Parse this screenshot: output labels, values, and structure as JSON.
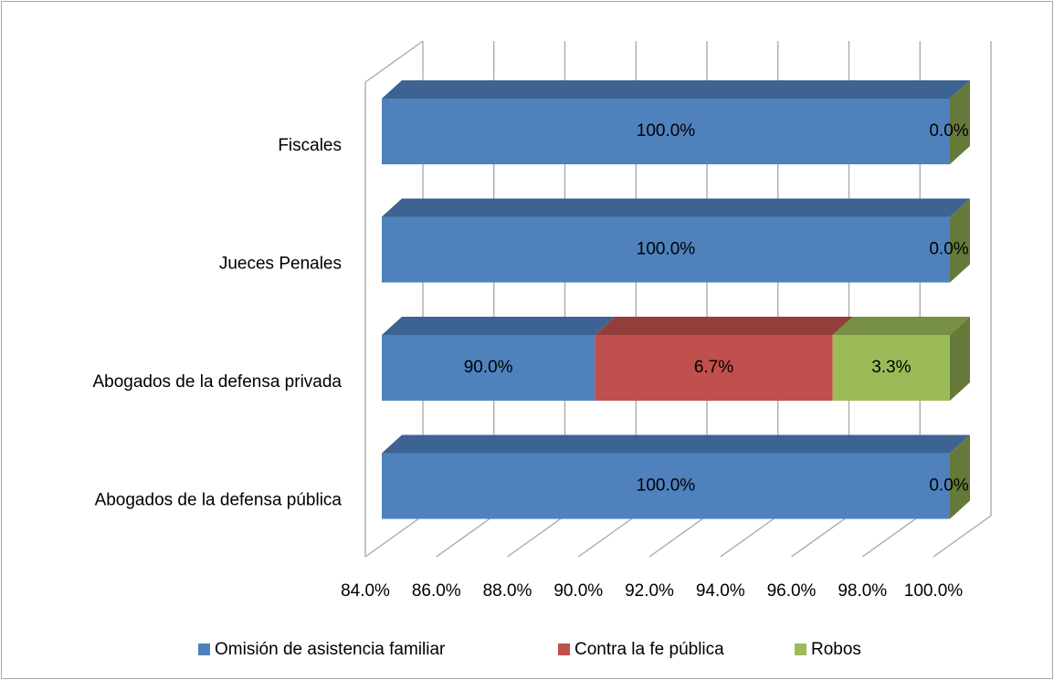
{
  "chart_data": {
    "type": "bar3d_stacked_horizontal",
    "categories": [
      "Fiscales",
      "Jueces Penales",
      "Abogados de la defensa privada",
      "Abogados de la defensa pública"
    ],
    "series": [
      {
        "name": "Omisión de asistencia familiar",
        "color": "#4f81bd",
        "values": [
          100,
          100,
          90,
          100
        ],
        "value_labels": [
          "100.0%",
          "100.0%",
          "90.0%",
          "100.0%"
        ]
      },
      {
        "name": "Contra la fe pública",
        "color": "#c0504d",
        "values": [
          0,
          0,
          6.7,
          0
        ],
        "value_labels": [
          null,
          null,
          "6.7%",
          null
        ]
      },
      {
        "name": "Robos",
        "color": "#9bbb59",
        "values": [
          0,
          0,
          3.3,
          0
        ],
        "value_labels": [
          "0.0%",
          "0.0%",
          "3.3%",
          "0.0%"
        ]
      }
    ],
    "xlim": [
      84,
      100
    ],
    "xticks": [
      {
        "value": 84,
        "label": "84.0%"
      },
      {
        "value": 86,
        "label": "86.0%"
      },
      {
        "value": 88,
        "label": "88.0%"
      },
      {
        "value": 90,
        "label": "90.0%"
      },
      {
        "value": 92,
        "label": "92.0%"
      },
      {
        "value": 94,
        "label": "94.0%"
      },
      {
        "value": 96,
        "label": "96.0%"
      },
      {
        "value": 98,
        "label": "98.0%"
      },
      {
        "value": 100,
        "label": "100.0%"
      }
    ],
    "grid": true,
    "legend": "bottom"
  }
}
